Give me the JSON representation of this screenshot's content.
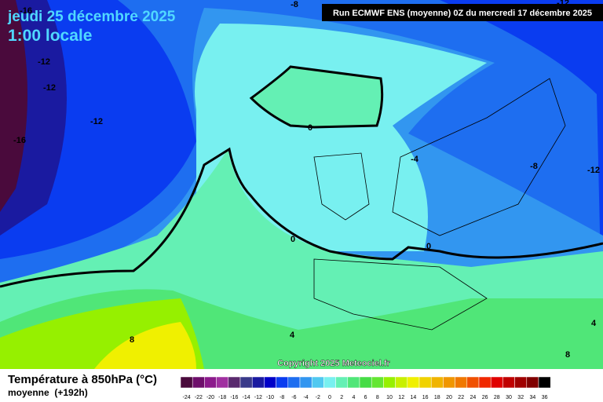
{
  "header": {
    "date": "jeudi 25 décembre 2025",
    "time": "1:00 locale",
    "run": "Run ECMWF ENS (moyenne) 0Z du mercredi 17 décembre 2025"
  },
  "map": {
    "contour_labels": [
      -8,
      -16,
      -12,
      -12,
      -12,
      -16,
      -12,
      0,
      -4,
      -8,
      -12,
      0,
      0,
      4,
      8,
      8,
      4
    ],
    "copyright": "Copyright 2025 Meteociel.fr"
  },
  "legend": {
    "title": "Température à 850hPa (°C)",
    "subtitle": "moyenne  (+192h)",
    "scale": [
      -24,
      -22,
      -20,
      -18,
      -16,
      -14,
      -12,
      -10,
      -8,
      -6,
      -4,
      -2,
      0,
      2,
      4,
      6,
      8,
      10,
      12,
      14,
      16,
      18,
      20,
      22,
      24,
      26,
      28,
      30,
      32,
      34,
      36
    ],
    "colors": [
      "#4a0a3c",
      "#6e0f6b",
      "#8c1a8c",
      "#a030a0",
      "#5a2a6e",
      "#3a3a8a",
      "#1a1aa0",
      "#0000c8",
      "#0a3cf0",
      "#1e6ef0",
      "#3296f0",
      "#50c8f0",
      "#78f0f0",
      "#64f0b4",
      "#50e678",
      "#46dc46",
      "#64e632",
      "#96f000",
      "#c8f000",
      "#f0f000",
      "#f0d200",
      "#f0b400",
      "#f09600",
      "#f07800",
      "#f05000",
      "#f02800",
      "#e00000",
      "#c00000",
      "#a00000",
      "#800000",
      "#000000"
    ]
  }
}
